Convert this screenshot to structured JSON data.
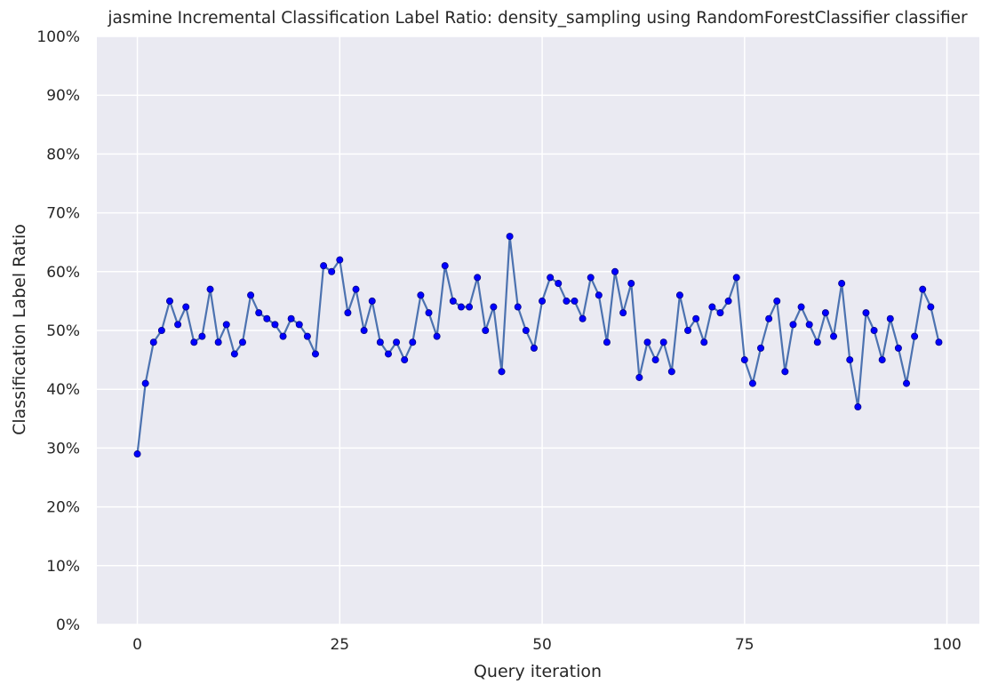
{
  "chart_data": {
    "type": "line",
    "title": "jasmine Incremental Classification Label Ratio: density_sampling using RandomForestClassifier classifier",
    "xlabel": "Query iteration",
    "ylabel": "Classification Label Ratio",
    "xlim": [
      -5,
      104
    ],
    "ylim": [
      0,
      1
    ],
    "x_ticks": [
      0,
      25,
      50,
      75,
      100
    ],
    "x_tick_labels": [
      "0",
      "25",
      "50",
      "75",
      "100"
    ],
    "y_ticks": [
      0,
      0.1,
      0.2,
      0.3,
      0.4,
      0.5,
      0.6,
      0.7,
      0.8,
      0.9,
      1.0
    ],
    "y_tick_labels": [
      "0%",
      "10%",
      "20%",
      "30%",
      "40%",
      "50%",
      "60%",
      "70%",
      "80%",
      "90%",
      "100%"
    ],
    "grid": true,
    "colors": {
      "background": "#eaeaf2",
      "grid": "#ffffff",
      "line": "#4c72b0",
      "marker": "#0000ff",
      "marker_edge": "#00008b"
    },
    "series": [
      {
        "x": [
          0,
          1,
          2,
          3,
          4,
          5,
          6,
          7,
          8,
          9,
          10,
          11,
          12,
          13,
          14,
          15,
          16,
          17,
          18,
          19,
          20,
          21,
          22,
          23,
          24,
          25,
          26,
          27,
          28,
          29,
          30,
          31,
          32,
          33,
          34,
          35,
          36,
          37,
          38,
          39,
          40,
          41,
          42,
          43,
          44,
          45,
          46,
          47,
          48,
          49,
          50,
          51,
          52,
          53,
          54,
          55,
          56,
          57,
          58,
          59,
          60,
          61,
          62,
          63,
          64,
          65,
          66,
          67,
          68,
          69,
          70,
          71,
          72,
          73,
          74,
          75,
          76,
          77,
          78,
          79,
          80,
          81,
          82,
          83,
          84,
          85,
          86,
          87,
          88,
          89,
          90,
          91,
          92,
          93,
          94,
          95,
          96,
          97,
          98,
          99
        ],
        "values": [
          0.29,
          0.41,
          0.48,
          0.5,
          0.55,
          0.51,
          0.54,
          0.48,
          0.49,
          0.57,
          0.48,
          0.51,
          0.46,
          0.48,
          0.56,
          0.53,
          0.52,
          0.51,
          0.49,
          0.52,
          0.51,
          0.49,
          0.46,
          0.61,
          0.6,
          0.62,
          0.53,
          0.57,
          0.5,
          0.55,
          0.48,
          0.46,
          0.48,
          0.45,
          0.48,
          0.56,
          0.53,
          0.49,
          0.61,
          0.55,
          0.54,
          0.54,
          0.59,
          0.5,
          0.54,
          0.43,
          0.66,
          0.54,
          0.5,
          0.47,
          0.55,
          0.59,
          0.58,
          0.55,
          0.55,
          0.52,
          0.59,
          0.56,
          0.48,
          0.6,
          0.53,
          0.58,
          0.42,
          0.48,
          0.45,
          0.48,
          0.43,
          0.56,
          0.5,
          0.52,
          0.48,
          0.54,
          0.53,
          0.55,
          0.59,
          0.45,
          0.41,
          0.47,
          0.52,
          0.55,
          0.43,
          0.51,
          0.54,
          0.51,
          0.48,
          0.53,
          0.49,
          0.58,
          0.45,
          0.37,
          0.53,
          0.5,
          0.45,
          0.52,
          0.47,
          0.41,
          0.49,
          0.57,
          0.54,
          0.48
        ]
      }
    ]
  }
}
